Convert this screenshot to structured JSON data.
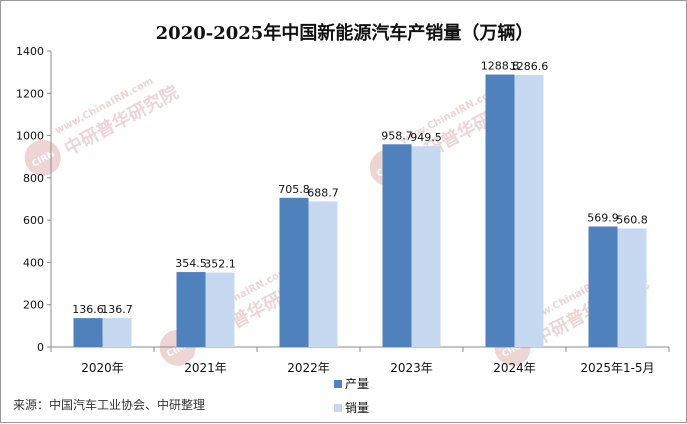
{
  "chart_data": {
    "type": "bar",
    "title": "2020-2025年中国新能源汽车产销量（万辆）",
    "categories": [
      "2020年",
      "2021年",
      "2022年",
      "2023年",
      "2024年",
      "2025年1-5月"
    ],
    "series": [
      {
        "name": "产量",
        "values": [
          136.6,
          354.5,
          705.8,
          958.7,
          1288.8,
          569.9
        ],
        "color": "#4f81bd"
      },
      {
        "name": "销量",
        "values": [
          136.7,
          352.1,
          688.7,
          949.5,
          1286.6,
          560.8
        ],
        "color": "#c6d9f1"
      }
    ],
    "y_ticks": [
      0,
      200,
      400,
      600,
      800,
      1000,
      1200,
      1400
    ],
    "ylim": [
      0,
      1400
    ],
    "grid": false,
    "legend_position": "bottom-center",
    "data_labels": true
  },
  "source_note": "来源：中国汽车工业协会、中研整理",
  "watermark": {
    "text": "中研普华研究院",
    "url_text": "www.ChinaIRN.com",
    "logo_text": "CIRN",
    "color": "#e8c8c8"
  },
  "axis_color": "#8c8c8c"
}
